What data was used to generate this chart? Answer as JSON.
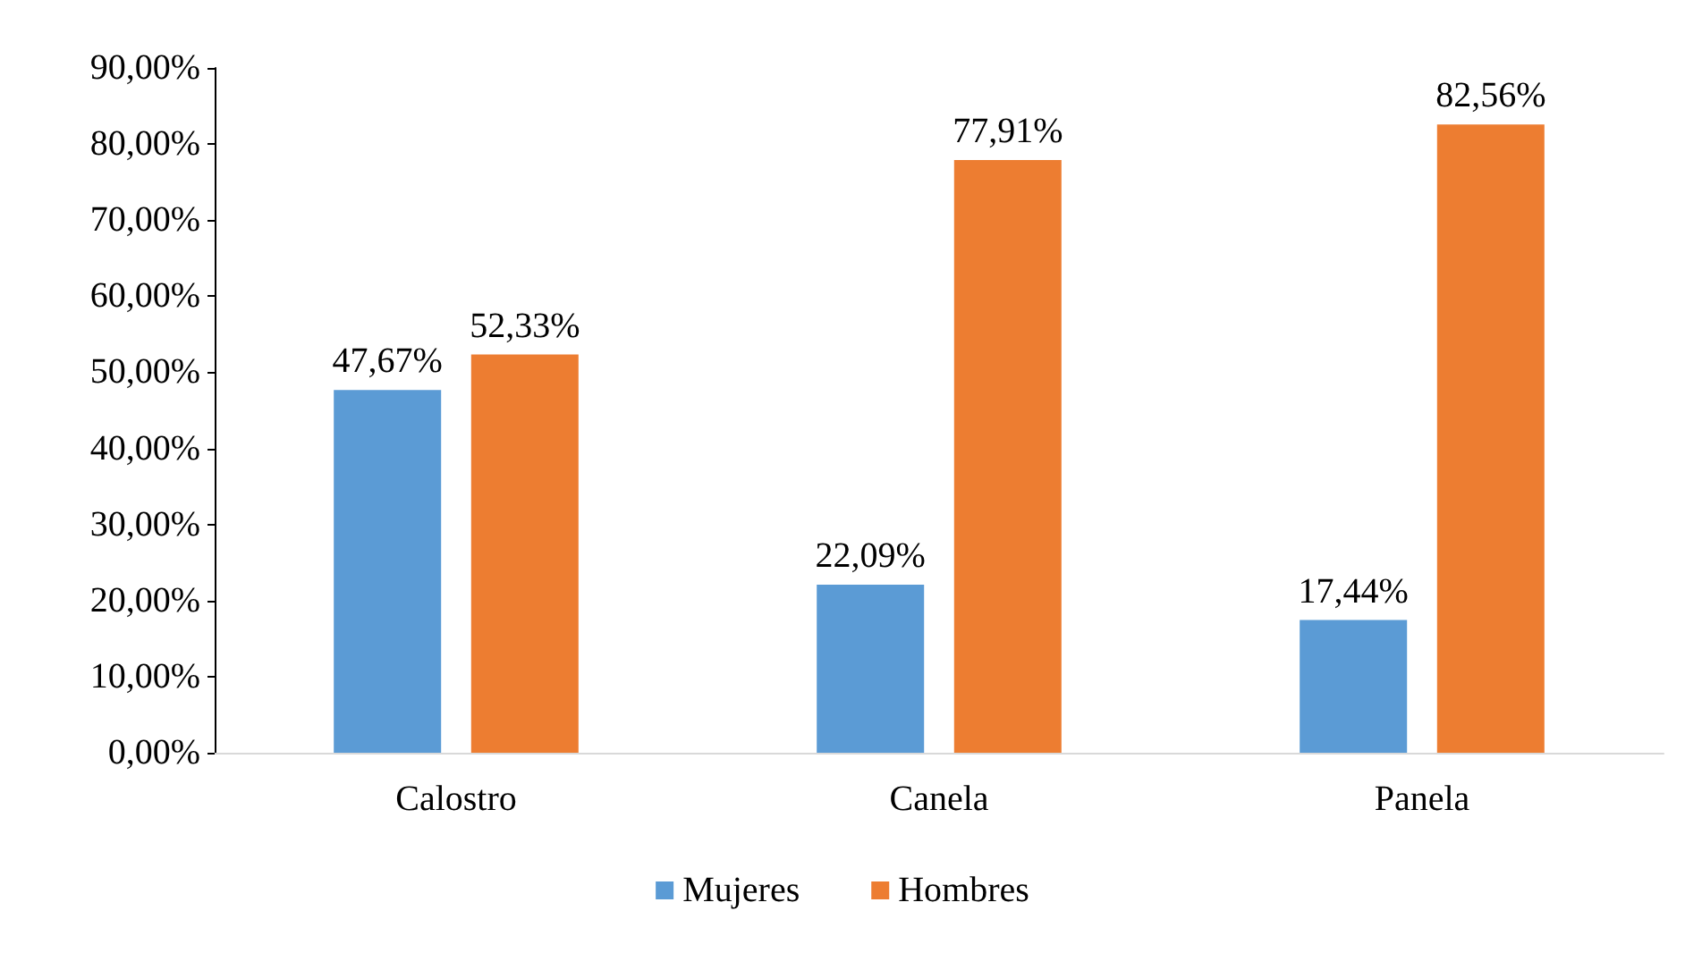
{
  "chart_data": {
    "type": "bar",
    "categories": [
      "Calostro",
      "Canela",
      "Panela"
    ],
    "series": [
      {
        "name": "Mujeres",
        "color": "#5b9bd5",
        "values": [
          47.67,
          22.09,
          17.44
        ],
        "value_labels": [
          "47,67%",
          "22,09%",
          "17,44%"
        ]
      },
      {
        "name": "Hombres",
        "color": "#ed7d31",
        "values": [
          52.33,
          77.91,
          82.56
        ],
        "value_labels": [
          "52,33%",
          "77,91%",
          "82,56%"
        ]
      }
    ],
    "ylim": [
      0,
      90
    ],
    "yticks": [
      {
        "value": 0,
        "label": "0,00%"
      },
      {
        "value": 10,
        "label": "10,00%"
      },
      {
        "value": 20,
        "label": "20,00%"
      },
      {
        "value": 30,
        "label": "30,00%"
      },
      {
        "value": 40,
        "label": "40,00%"
      },
      {
        "value": 50,
        "label": "50,00%"
      },
      {
        "value": 60,
        "label": "60,00%"
      },
      {
        "value": 70,
        "label": "70,00%"
      },
      {
        "value": 80,
        "label": "80,00%"
      },
      {
        "value": 90,
        "label": "90,00%"
      }
    ],
    "grid": false,
    "legend": "bottom"
  }
}
